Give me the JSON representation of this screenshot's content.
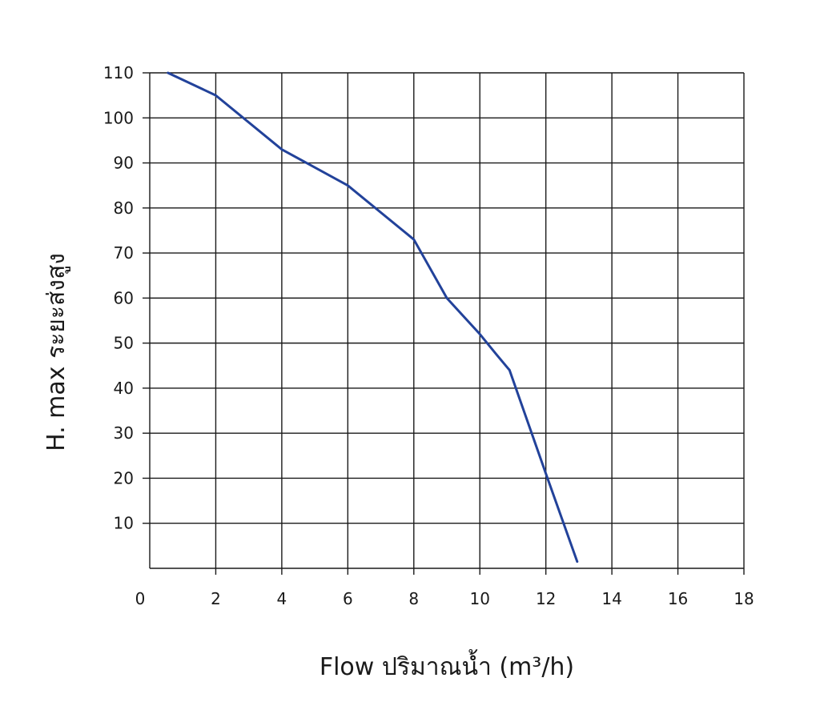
{
  "chart_data": {
    "type": "line",
    "xlabel": "Flow  ปริมาณน้ำ (m³/h)",
    "ylabel": "H. max  ระยะส่งสูง",
    "xlim": [
      0,
      18
    ],
    "ylim": [
      0,
      110
    ],
    "x_ticks": [
      "0",
      "2",
      "4",
      "6",
      "8",
      "10",
      "12",
      "14",
      "16",
      "18"
    ],
    "y_ticks": [
      "10",
      "20",
      "30",
      "40",
      "50",
      "60",
      "70",
      "80",
      "90",
      "100",
      "110"
    ],
    "grid": true,
    "series": [
      {
        "color": "#22429a",
        "x": [
          0.55,
          2.0,
          4.0,
          6.0,
          8.0,
          9.0,
          10.0,
          10.5,
          10.9,
          12.0,
          12.95
        ],
        "y": [
          110,
          105,
          93,
          85,
          73,
          60,
          52,
          47.5,
          44,
          21,
          1.5
        ]
      }
    ]
  }
}
